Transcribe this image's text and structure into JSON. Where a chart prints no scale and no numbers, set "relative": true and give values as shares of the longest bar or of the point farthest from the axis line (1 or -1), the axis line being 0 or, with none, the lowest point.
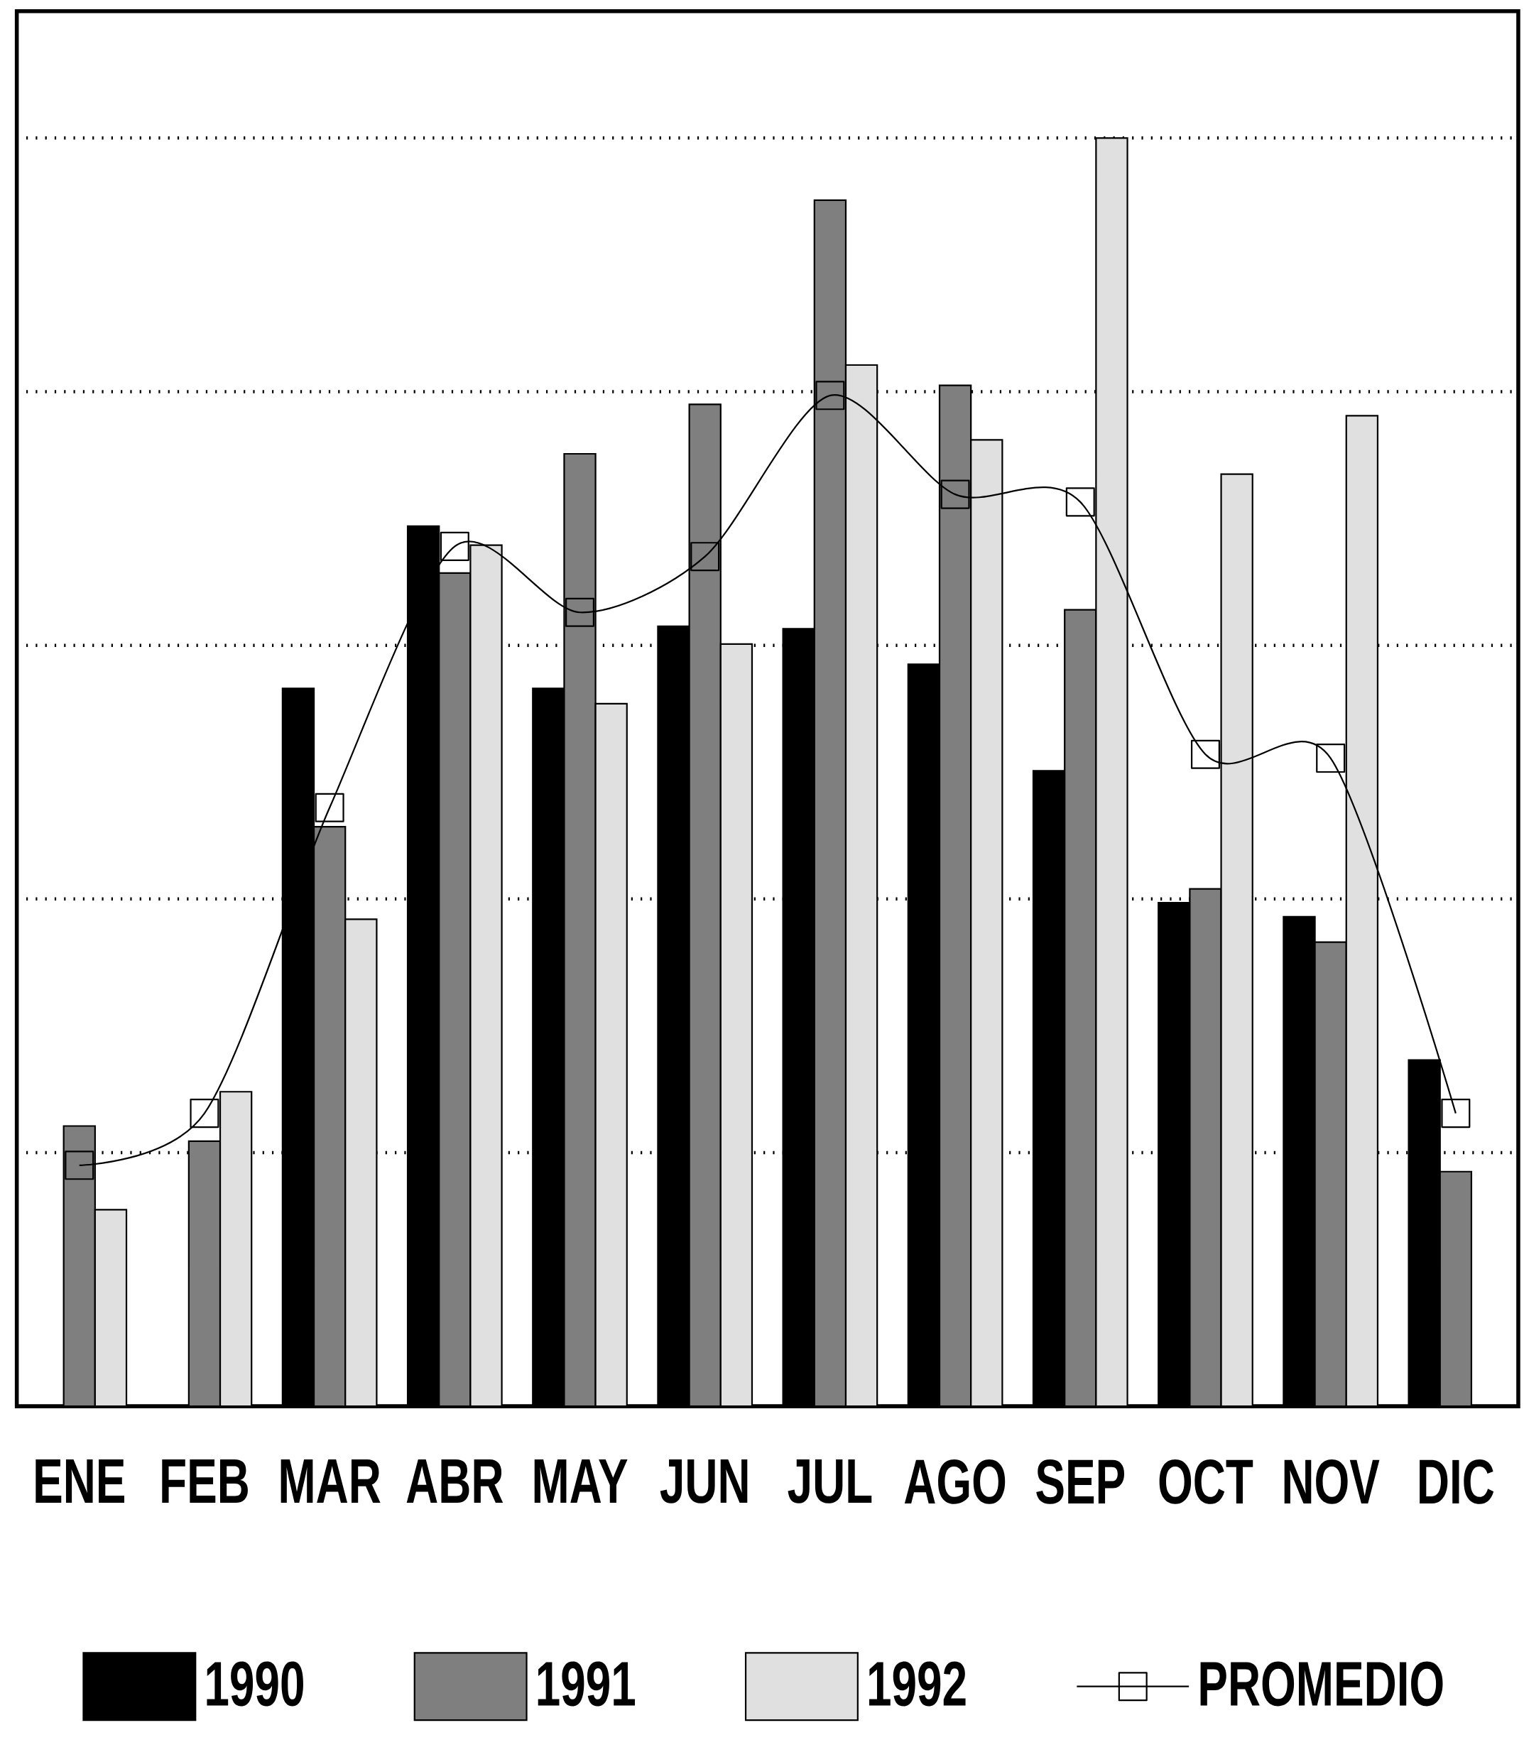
{
  "chart_data": {
    "type": "bar",
    "relative": true,
    "grid": "y",
    "legend": "bottom",
    "categories": [
      "ENE",
      "FEB",
      "MAR",
      "ABR",
      "MAY",
      "JUN",
      "JUL",
      "AGO",
      "SEP",
      "OCT",
      "NOV",
      "DIC"
    ],
    "series": [
      {
        "name": "1990",
        "color": "#000000",
        "values": [
          null,
          null,
          0.566,
          0.694,
          0.566,
          0.615,
          0.613,
          0.585,
          0.501,
          0.397,
          0.386,
          0.273
        ]
      },
      {
        "name": "1991",
        "color": "#7f7f7f",
        "values": [
          0.221,
          0.209,
          0.457,
          0.657,
          0.751,
          0.79,
          0.951,
          0.805,
          0.628,
          0.408,
          0.366,
          0.185
        ]
      },
      {
        "name": "1992",
        "color": "#e0e0e0",
        "values": [
          0.155,
          0.248,
          0.384,
          0.679,
          0.554,
          0.601,
          0.821,
          0.762,
          1.0,
          0.735,
          0.781,
          null
        ]
      },
      {
        "name": "PROMEDIO",
        "type": "line",
        "color": "#000000",
        "marker": "square",
        "line_style": "solid",
        "values": [
          0.19,
          0.231,
          0.472,
          0.678,
          0.626,
          0.67,
          0.797,
          0.719,
          0.713,
          0.514,
          0.511,
          0.231
        ]
      }
    ]
  }
}
